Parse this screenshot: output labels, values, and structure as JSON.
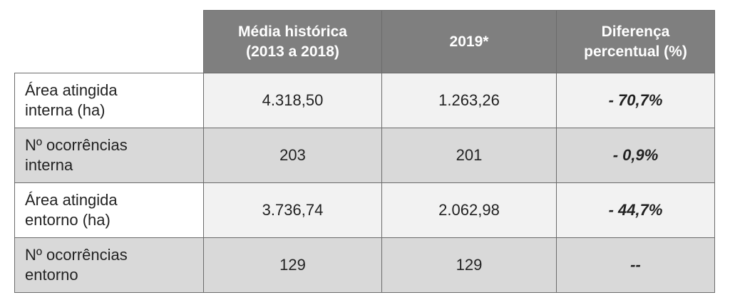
{
  "table": {
    "columns": [
      "Média histórica\n(2013 a 2018)",
      "2019*",
      "Diferença\npercentual (%)"
    ],
    "rows": [
      [
        "Área atingida\ninterna (ha)",
        "4.318,50",
        "1.263,26",
        "- 70,7%"
      ],
      [
        "Nº ocorrências\ninterna",
        "203",
        "201",
        "- 0,9%"
      ],
      [
        "Área atingida\nentorno (ha)",
        "3.736,74",
        "2.062,98",
        "- 44,7%"
      ],
      [
        "Nº ocorrências\nentorno",
        "129",
        "129",
        "--"
      ]
    ]
  }
}
